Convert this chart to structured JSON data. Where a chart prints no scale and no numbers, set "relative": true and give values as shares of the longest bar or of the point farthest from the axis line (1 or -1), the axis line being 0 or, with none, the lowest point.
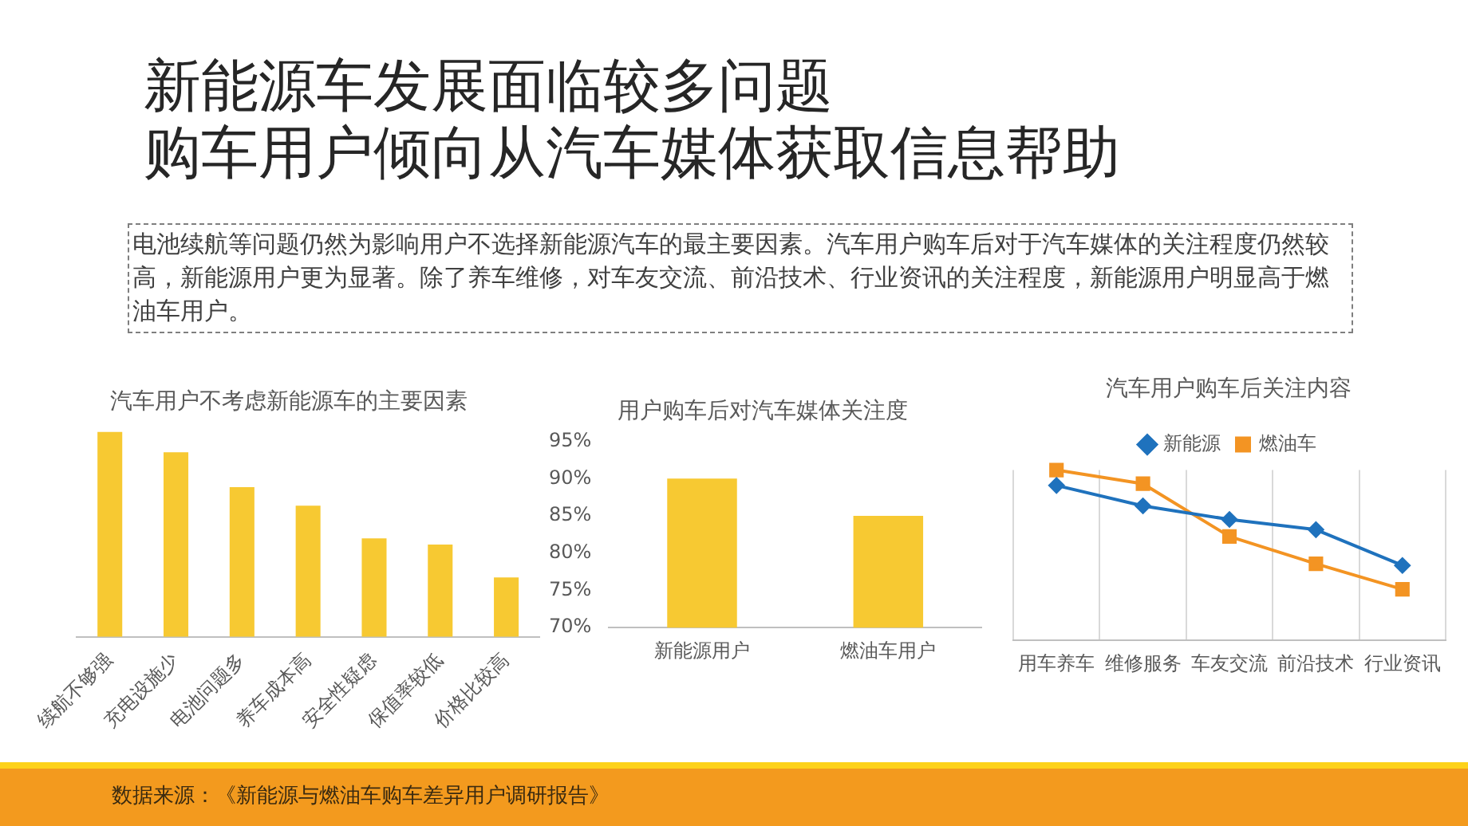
{
  "chart_data": [
    {
      "type": "other",
      "title": "新能源车发展面临较多问题",
      "subtitle": "购车用户倾向从汽车媒体获取信息帮助",
      "annotations": [
        "电池续航等问题仍然为影响用户不选择新能源汽车的最主要因素。汽车用户购车后对于汽车媒体的关注程度仍然较高，新能源用户更为显著。除了养车维修，对车友交流、前沿技术、行业资讯的关注程度，新能源用户明显高于燃油车用户。",
        "数据来源：《新能源与燃油车购车差异用户调研报告》"
      ]
    },
    {
      "type": "bar",
      "title": "汽车用户不考虑新能源车的主要因素",
      "categories": [
        "续航不够强",
        "充电设施少",
        "电池问题多",
        "养车成本高",
        "安全性疑虑",
        "保值率较低",
        "价格比较高"
      ],
      "values": [
        1,
        0.9,
        0.73,
        0.64,
        0.48,
        0.45,
        0.29
      ],
      "color": "#f7c932",
      "relative": true,
      "grid": false,
      "legend": false
    },
    {
      "type": "bar",
      "title": "用户购车后对汽车媒体关注度",
      "categories": [
        "新能源用户",
        "燃油车用户"
      ],
      "values": [
        90,
        85
      ],
      "color": "#f7c932",
      "ylim": [
        70,
        95
      ],
      "yticks": [
        {
          "value": 70,
          "label": "70%"
        },
        {
          "value": 75,
          "label": "75%"
        },
        {
          "value": 80,
          "label": "80%"
        },
        {
          "value": 85,
          "label": "85%"
        },
        {
          "value": 90,
          "label": "90%"
        },
        {
          "value": 95,
          "label": "95%"
        }
      ],
      "grid": false,
      "legend": false
    },
    {
      "type": "line",
      "title": "汽车用户购车后关注内容",
      "categories": [
        "用车养车",
        "维修服务",
        "车友交流",
        "前沿技术",
        "行业资讯"
      ],
      "relative": true,
      "grid": "x",
      "legend": "top",
      "line_style": "solid",
      "series": [
        {
          "name": "新能源",
          "color": "#1f72bd",
          "marker": "diamond",
          "values": [
            0.91,
            0.79,
            0.71,
            0.65,
            0.44
          ]
        },
        {
          "name": "燃油车",
          "color": "#f39423",
          "marker": "square",
          "values": [
            1,
            0.92,
            0.61,
            0.45,
            0.3
          ]
        }
      ]
    }
  ]
}
